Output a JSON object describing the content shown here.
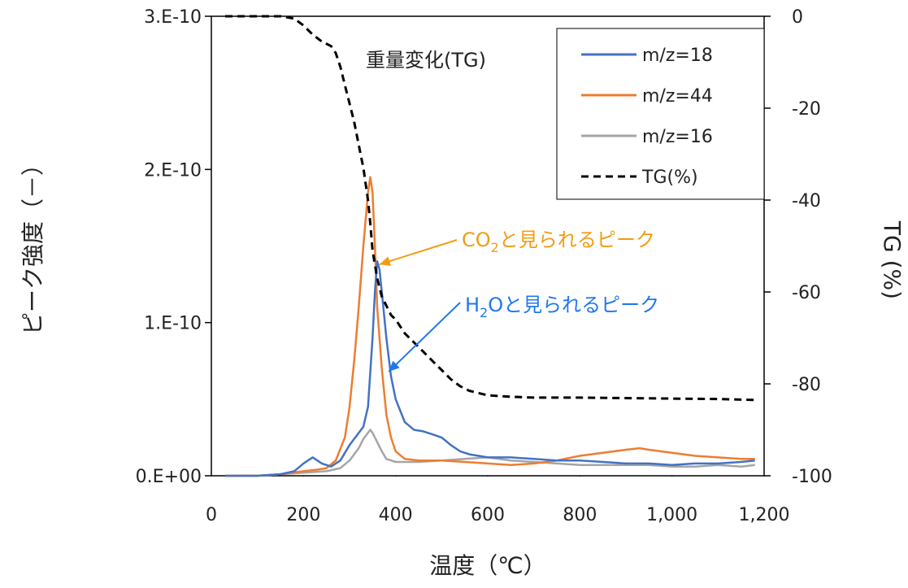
{
  "chart_data": {
    "type": "line",
    "xlabel": "温度（℃）",
    "ylabel_left": "ピーク強度（－）",
    "ylabel_right": "TG (%)",
    "xlim": [
      0,
      1200
    ],
    "ylim_left": [
      0,
      3e-10
    ],
    "ylim_right": [
      -100,
      0
    ],
    "x_ticks": [
      "0",
      "200",
      "400",
      "600",
      "800",
      "1,000",
      "1,200"
    ],
    "y_left_ticks": [
      "0.E+00",
      "1.E-10",
      "2.E-10",
      "3.E-10"
    ],
    "y_right_ticks": [
      "0",
      "-20",
      "-40",
      "-60",
      "-80",
      "-100"
    ],
    "grid": false,
    "legend_position": "top-right",
    "series": [
      {
        "name": "m/z=18",
        "axis": "left",
        "color": "#4472C4",
        "dash": "solid",
        "x": [
          30,
          100,
          150,
          180,
          200,
          220,
          240,
          260,
          280,
          300,
          320,
          330,
          340,
          350,
          355,
          360,
          365,
          370,
          380,
          390,
          400,
          420,
          440,
          460,
          480,
          500,
          520,
          540,
          560,
          580,
          600,
          650,
          700,
          750,
          800,
          850,
          900,
          950,
          1000,
          1050,
          1100,
          1150,
          1180
        ],
        "y": [
          0,
          0,
          1e-12,
          3e-12,
          8e-12,
          1.2e-11,
          8e-12,
          6e-12,
          1e-11,
          2e-11,
          2.8e-11,
          3.2e-11,
          4.5e-11,
          9e-11,
          1.2e-10,
          1.4e-10,
          1.35e-10,
          1.2e-10,
          9e-11,
          6.5e-11,
          5e-11,
          3.5e-11,
          3e-11,
          2.9e-11,
          2.7e-11,
          2.5e-11,
          2e-11,
          1.6e-11,
          1.4e-11,
          1.3e-11,
          1.2e-11,
          1.2e-11,
          1.1e-11,
          1e-11,
          1e-11,
          9e-12,
          8e-12,
          8e-12,
          7e-12,
          8e-12,
          8e-12,
          9e-12,
          1e-11
        ]
      },
      {
        "name": "m/z=44",
        "axis": "left",
        "color": "#ED7D31",
        "dash": "solid",
        "x": [
          30,
          100,
          150,
          200,
          230,
          250,
          270,
          290,
          300,
          310,
          320,
          330,
          340,
          345,
          350,
          355,
          360,
          370,
          380,
          390,
          400,
          420,
          450,
          500,
          550,
          600,
          650,
          700,
          750,
          800,
          850,
          900,
          930,
          950,
          1000,
          1050,
          1100,
          1150,
          1180
        ],
        "y": [
          0,
          0,
          1e-12,
          3e-12,
          4e-12,
          5e-12,
          1e-11,
          2.5e-11,
          4.5e-11,
          7.5e-11,
          1.1e-10,
          1.5e-10,
          1.85e-10,
          1.95e-10,
          1.85e-10,
          1.5e-10,
          1.1e-10,
          7e-11,
          4e-11,
          2.5e-11,
          1.6e-11,
          1.1e-11,
          1e-11,
          1e-11,
          9e-12,
          8e-12,
          7e-12,
          8e-12,
          1e-11,
          1.3e-11,
          1.5e-11,
          1.7e-11,
          1.8e-11,
          1.7e-11,
          1.5e-11,
          1.3e-11,
          1.2e-11,
          1.1e-11,
          1.1e-11
        ]
      },
      {
        "name": "m/z=16",
        "axis": "left",
        "color": "#A5A5A5",
        "dash": "solid",
        "x": [
          30,
          100,
          150,
          200,
          250,
          280,
          300,
          320,
          330,
          340,
          345,
          350,
          360,
          370,
          380,
          400,
          450,
          500,
          550,
          600,
          650,
          700,
          750,
          800,
          850,
          900,
          950,
          1000,
          1050,
          1100,
          1150,
          1180
        ],
        "y": [
          0,
          0,
          1e-12,
          2e-12,
          3e-12,
          5e-12,
          1e-11,
          1.8e-11,
          2.4e-11,
          2.8e-11,
          3e-11,
          2.8e-11,
          2.2e-11,
          1.6e-11,
          1.1e-11,
          9e-12,
          9e-12,
          1e-11,
          1.1e-11,
          1.2e-11,
          1e-11,
          9e-12,
          8e-12,
          7e-12,
          7e-12,
          7e-12,
          7e-12,
          6e-12,
          6e-12,
          7e-12,
          6e-12,
          7e-12
        ]
      },
      {
        "name": "TG(%)",
        "axis": "right",
        "color": "#000000",
        "dash": "dashed",
        "x": [
          30,
          100,
          150,
          180,
          200,
          220,
          240,
          260,
          270,
          280,
          290,
          300,
          310,
          320,
          330,
          340,
          345,
          350,
          355,
          360,
          365,
          370,
          380,
          390,
          400,
          420,
          440,
          460,
          480,
          500,
          520,
          540,
          560,
          580,
          600,
          650,
          700,
          800,
          900,
          1000,
          1100,
          1180
        ],
        "y": [
          0,
          0,
          0,
          -0.5,
          -2,
          -4,
          -5.5,
          -6.5,
          -8,
          -11,
          -15,
          -19,
          -23,
          -28,
          -33,
          -40,
          -45,
          -51,
          -54,
          -57,
          -59,
          -61,
          -63,
          -65,
          -66,
          -69,
          -71,
          -73,
          -75,
          -77,
          -79,
          -80.5,
          -81.5,
          -82,
          -82.5,
          -82.8,
          -83,
          -83,
          -83.1,
          -83.2,
          -83.3,
          -83.5
        ]
      }
    ],
    "annotations": [
      {
        "id": "tg_label",
        "text": "重量変化(TG)"
      },
      {
        "id": "co2",
        "prefix": "CO",
        "sub": "2",
        "suffix": "と見られるピーク",
        "color": "#F39C12",
        "points_to": {
          "x": 365,
          "y": 1.38e-10
        }
      },
      {
        "id": "h2o",
        "prefix": "H",
        "sub": "2",
        "suffix": "Oと見られるピーク",
        "color": "#1F77F0",
        "points_to": {
          "x": 385,
          "y": 6.8e-11
        }
      }
    ]
  }
}
